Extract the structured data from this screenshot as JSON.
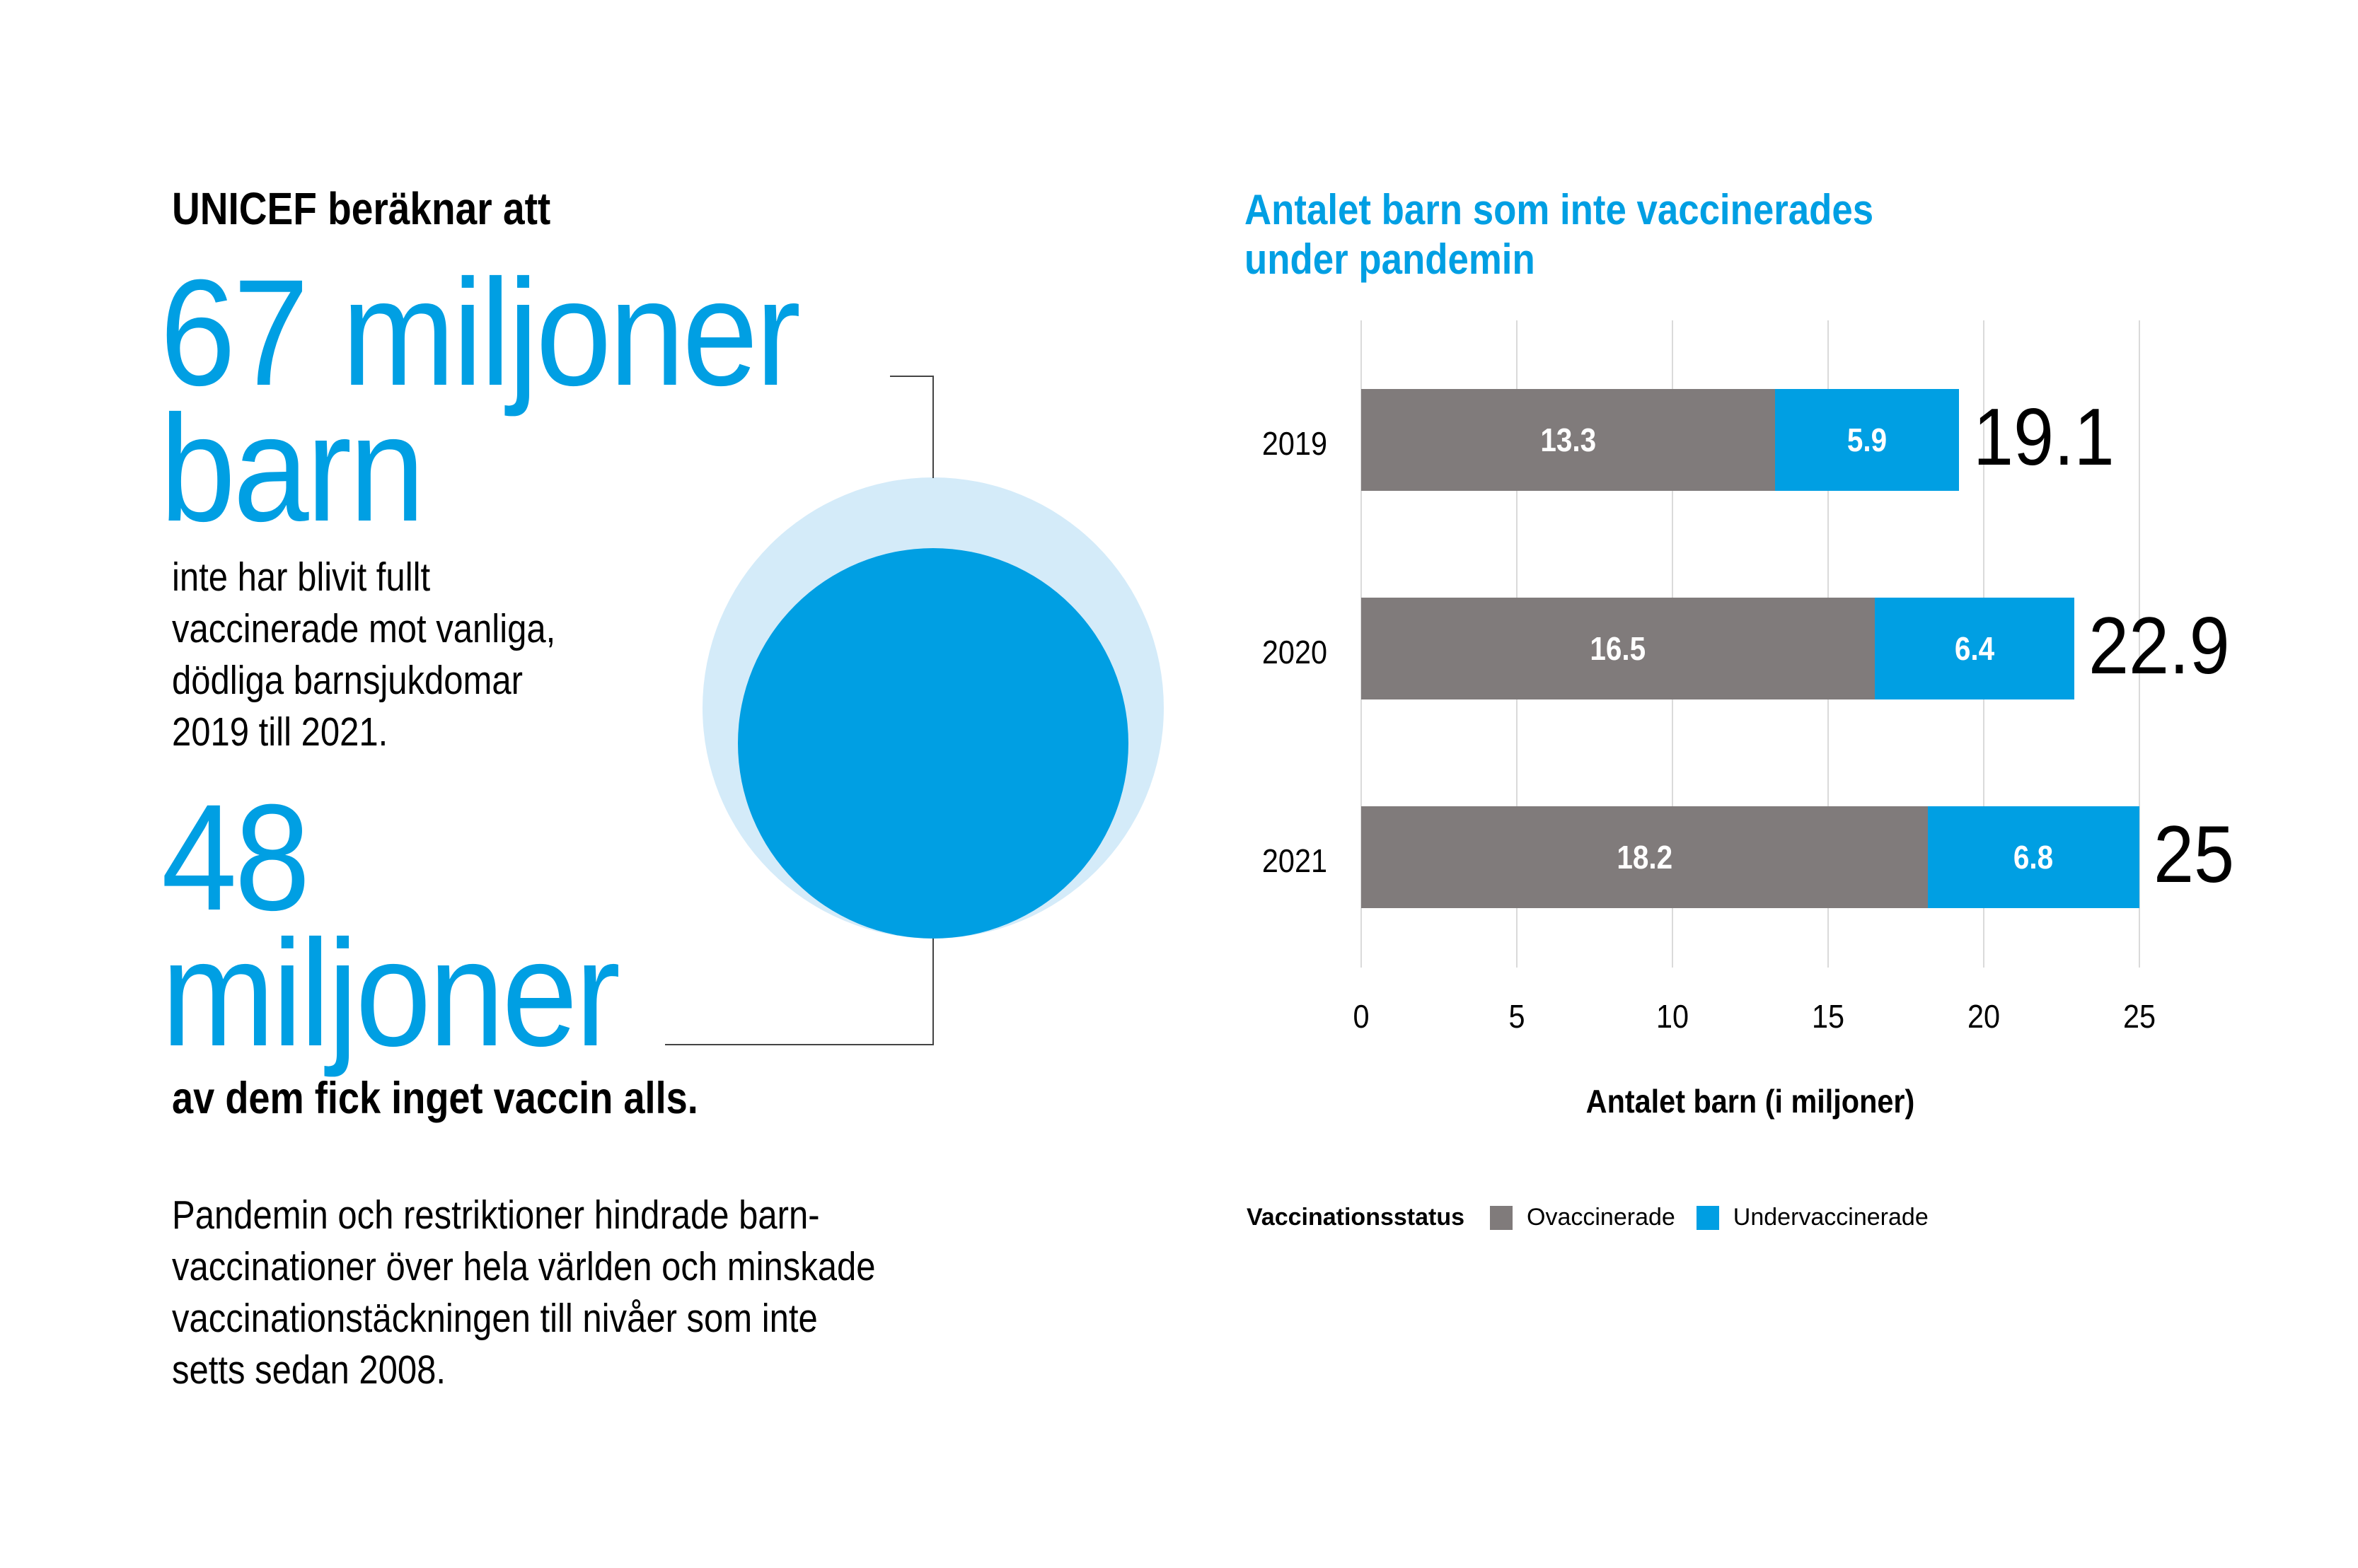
{
  "left": {
    "intro": "UNICEF beräknar att",
    "headline1_line1": "67 miljoner",
    "headline1_line2": "barn",
    "description1": [
      "inte har blivit fullt",
      "vaccinerade mot vanliga,",
      "dödliga barnsjukdomar",
      "2019 till 2021."
    ],
    "headline2_line1": "48",
    "headline2_line2": "miljoner",
    "strong_line": "av dem fick inget vaccin alls.",
    "description2": [
      "Pandemin och restriktioner hindrade barn-",
      "vaccinationer över hela världen och minskade",
      "vaccinationstäckningen till nivåer som inte",
      "setts sedan 2008."
    ]
  },
  "colors": {
    "accent_blue": "#009FE3",
    "light_blue": "#D4EBF9",
    "unvaccinated_gray": "#807B7B",
    "grid": "#DADADA"
  },
  "chart_data": {
    "type": "bar",
    "orientation": "horizontal",
    "stacked": true,
    "title": "Antalet barn som inte vaccinerades under pandemin",
    "title_lines": [
      "Antalet barn som inte vaccinerades",
      "under pandemin"
    ],
    "categories": [
      "2019",
      "2020",
      "2021"
    ],
    "series": [
      {
        "name": "Ovaccinerade",
        "color": "#807B7B",
        "values": [
          13.3,
          16.5,
          18.2
        ],
        "labels": [
          "13.3",
          "16.5",
          "18.2"
        ]
      },
      {
        "name": "Undervaccinerade",
        "color": "#009FE3",
        "values": [
          5.9,
          6.4,
          6.8
        ],
        "labels": [
          "5.9",
          "6.4",
          "6.8"
        ]
      }
    ],
    "totals": [
      19.1,
      22.9,
      25
    ],
    "total_labels": [
      "19.1",
      "22.9",
      "25"
    ],
    "xlabel": "Antalet barn (i miljoner)",
    "ylabel": "",
    "xlim": [
      0,
      25
    ],
    "xticks": [
      "0",
      "5",
      "10",
      "15",
      "20",
      "25"
    ],
    "grid": true,
    "legend": {
      "title": "Vaccinationsstatus",
      "position": "bottom-left",
      "items": [
        "Ovaccinerade",
        "Undervaccinerade"
      ]
    }
  }
}
